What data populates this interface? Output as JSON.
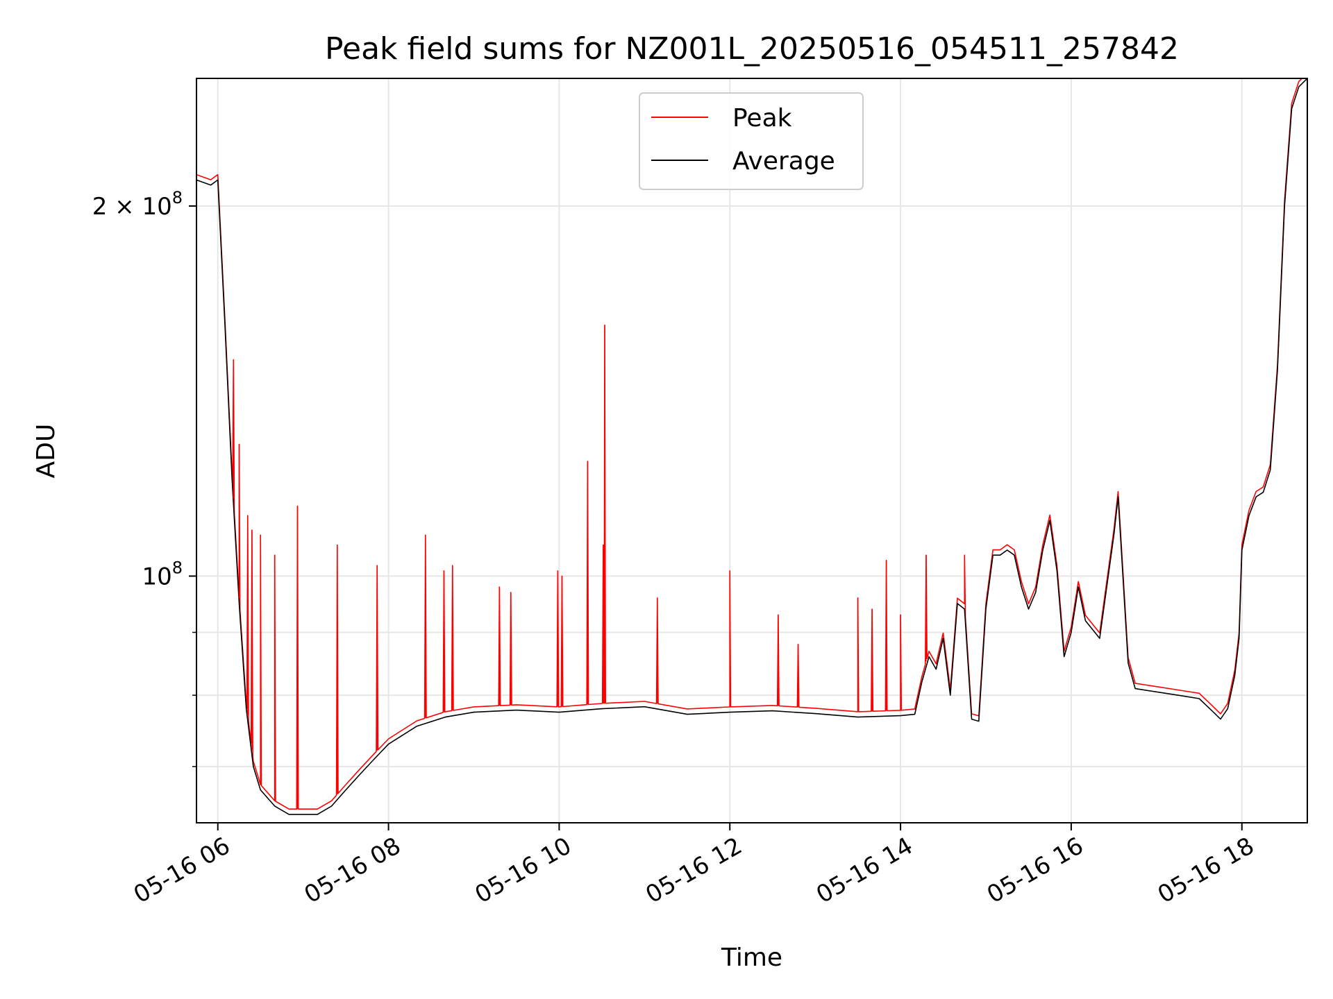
{
  "chart_data": {
    "type": "line",
    "title": "Peak field sums for NZ001L_20250516_054511_257842",
    "xlabel": "Time",
    "ylabel": "ADU",
    "x_axis": {
      "kind": "datetime",
      "range": [
        "2025-05-16 05:45",
        "2025-05-16 18:46"
      ],
      "ticks": [
        "2025-05-16 06:00",
        "2025-05-16 08:00",
        "2025-05-16 10:00",
        "2025-05-16 12:00",
        "2025-05-16 14:00",
        "2025-05-16 16:00",
        "2025-05-16 18:00"
      ],
      "tick_labels": [
        "05-16 06",
        "05-16 08",
        "05-16 10",
        "05-16 12",
        "05-16 14",
        "05-16 16",
        "05-16 18"
      ]
    },
    "y_axis": {
      "scale": "log",
      "range": [
        63000000,
        254000000
      ],
      "major_ticks": [
        {
          "value": 100000000,
          "base": "10",
          "exp": "8"
        },
        {
          "value": 200000000,
          "coef": "2",
          "base": "10",
          "exp": "8"
        }
      ],
      "minor_ticks": [
        70000000,
        80000000,
        90000000
      ]
    },
    "grid": true,
    "legend": {
      "placement": "top-center",
      "entries": [
        "Peak",
        "Average"
      ]
    },
    "colors": {
      "Peak": "#ff0000",
      "Average": "#000000"
    },
    "series": [
      {
        "name": "Average",
        "x": [
          "2025-05-16 05:45",
          "2025-05-16 05:55",
          "2025-05-16 06:00",
          "2025-05-16 06:05",
          "2025-05-16 06:10",
          "2025-05-16 06:15",
          "2025-05-16 06:20",
          "2025-05-16 06:25",
          "2025-05-16 06:30",
          "2025-05-16 06:40",
          "2025-05-16 06:50",
          "2025-05-16 07:00",
          "2025-05-16 07:10",
          "2025-05-16 07:20",
          "2025-05-16 07:30",
          "2025-05-16 07:40",
          "2025-05-16 07:50",
          "2025-05-16 08:00",
          "2025-05-16 08:20",
          "2025-05-16 08:40",
          "2025-05-16 09:00",
          "2025-05-16 09:30",
          "2025-05-16 10:00",
          "2025-05-16 10:30",
          "2025-05-16 11:00",
          "2025-05-16 11:30",
          "2025-05-16 12:00",
          "2025-05-16 12:30",
          "2025-05-16 13:00",
          "2025-05-16 13:30",
          "2025-05-16 14:00",
          "2025-05-16 14:10",
          "2025-05-16 14:15",
          "2025-05-16 14:20",
          "2025-05-16 14:25",
          "2025-05-16 14:30",
          "2025-05-16 14:35",
          "2025-05-16 14:40",
          "2025-05-16 14:45",
          "2025-05-16 14:50",
          "2025-05-16 14:55",
          "2025-05-16 15:00",
          "2025-05-16 15:05",
          "2025-05-16 15:10",
          "2025-05-16 15:15",
          "2025-05-16 15:20",
          "2025-05-16 15:25",
          "2025-05-16 15:30",
          "2025-05-16 15:35",
          "2025-05-16 15:40",
          "2025-05-16 15:45",
          "2025-05-16 15:50",
          "2025-05-16 15:55",
          "2025-05-16 16:00",
          "2025-05-16 16:05",
          "2025-05-16 16:10",
          "2025-05-16 16:20",
          "2025-05-16 16:30",
          "2025-05-16 16:33",
          "2025-05-16 16:40",
          "2025-05-16 16:45",
          "2025-05-16 17:00",
          "2025-05-16 17:15",
          "2025-05-16 17:30",
          "2025-05-16 17:40",
          "2025-05-16 17:45",
          "2025-05-16 17:50",
          "2025-05-16 17:55",
          "2025-05-16 17:58",
          "2025-05-16 18:00",
          "2025-05-16 18:05",
          "2025-05-16 18:10",
          "2025-05-16 18:15",
          "2025-05-16 18:20",
          "2025-05-16 18:25",
          "2025-05-16 18:30",
          "2025-05-16 18:35",
          "2025-05-16 18:40",
          "2025-05-16 18:46"
        ],
        "values": [
          210000000,
          208000000,
          210000000,
          160000000,
          120000000,
          95000000,
          78000000,
          70000000,
          67000000,
          65000000,
          64000000,
          64000000,
          64000000,
          65000000,
          67000000,
          69000000,
          71000000,
          73000000,
          75500000,
          76800000,
          77500000,
          77800000,
          77500000,
          78000000,
          78300000,
          77200000,
          77500000,
          77700000,
          77300000,
          76800000,
          77000000,
          77200000,
          82000000,
          86000000,
          84000000,
          89000000,
          80000000,
          95000000,
          94000000,
          76500000,
          76200000,
          94000000,
          104000000,
          104000000,
          105000000,
          104000000,
          98000000,
          94000000,
          97000000,
          105000000,
          111000000,
          101000000,
          86000000,
          90000000,
          98000000,
          92000000,
          89000000,
          108000000,
          116000000,
          85000000,
          81000000,
          80500000,
          80000000,
          79500000,
          77500000,
          76500000,
          78000000,
          83000000,
          89000000,
          105000000,
          112000000,
          116000000,
          117000000,
          122000000,
          147000000,
          200000000,
          240000000,
          250000000,
          254000000
        ]
      },
      {
        "name": "Peak",
        "spikes": [
          {
            "x": "2025-05-16 06:11",
            "value": 150000000
          },
          {
            "x": "2025-05-16 06:15",
            "value": 128000000
          },
          {
            "x": "2025-05-16 06:21",
            "value": 112000000
          },
          {
            "x": "2025-05-16 06:24",
            "value": 109000000
          },
          {
            "x": "2025-05-16 06:30",
            "value": 108000000
          },
          {
            "x": "2025-05-16 06:40",
            "value": 104000000
          },
          {
            "x": "2025-05-16 06:56",
            "value": 114000000
          },
          {
            "x": "2025-05-16 07:24",
            "value": 106000000
          },
          {
            "x": "2025-05-16 07:52",
            "value": 102000000
          },
          {
            "x": "2025-05-16 08:26",
            "value": 108000000
          },
          {
            "x": "2025-05-16 08:39",
            "value": 101000000
          },
          {
            "x": "2025-05-16 08:45",
            "value": 102000000
          },
          {
            "x": "2025-05-16 09:18",
            "value": 98000000
          },
          {
            "x": "2025-05-16 09:26",
            "value": 97000000
          },
          {
            "x": "2025-05-16 09:59",
            "value": 101000000
          },
          {
            "x": "2025-05-16 10:02",
            "value": 100000000
          },
          {
            "x": "2025-05-16 10:20",
            "value": 124000000
          },
          {
            "x": "2025-05-16 10:31",
            "value": 106000000
          },
          {
            "x": "2025-05-16 10:32",
            "value": 160000000
          },
          {
            "x": "2025-05-16 11:09",
            "value": 96000000
          },
          {
            "x": "2025-05-16 12:00",
            "value": 101000000
          },
          {
            "x": "2025-05-16 12:34",
            "value": 93000000
          },
          {
            "x": "2025-05-16 12:48",
            "value": 88000000
          },
          {
            "x": "2025-05-16 13:30",
            "value": 96000000
          },
          {
            "x": "2025-05-16 13:40",
            "value": 94000000
          },
          {
            "x": "2025-05-16 13:50",
            "value": 103000000
          },
          {
            "x": "2025-05-16 14:00",
            "value": 93000000
          },
          {
            "x": "2025-05-16 14:18",
            "value": 104000000
          },
          {
            "x": "2025-05-16 14:45",
            "value": 104000000
          }
        ]
      }
    ]
  }
}
